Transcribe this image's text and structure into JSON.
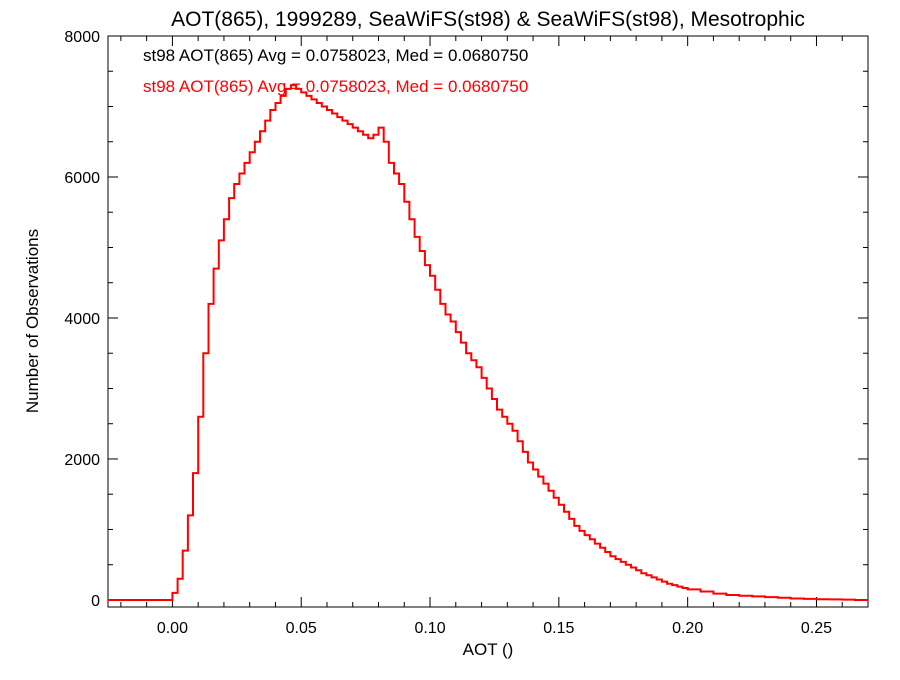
{
  "chart_data": {
    "type": "line",
    "step": true,
    "title": "AOT(865), 1999289, SeaWiFS(st98) & SeaWiFS(st98), Mesotrophic",
    "xlabel": "AOT ()",
    "ylabel": "Number of Observations",
    "xlim": [
      -0.025,
      0.27
    ],
    "ylim": [
      -100,
      8000
    ],
    "xticks": [
      0.0,
      0.05,
      0.1,
      0.15,
      0.2,
      0.25
    ],
    "xtick_labels": [
      "0.00",
      "0.05",
      "0.10",
      "0.15",
      "0.20",
      "0.25"
    ],
    "yticks": [
      0,
      2000,
      4000,
      6000,
      8000
    ],
    "ytick_labels": [
      "0",
      "2000",
      "4000",
      "6000",
      "8000"
    ],
    "grid": false,
    "annotations": [
      {
        "text": "st98 AOT(865) Avg = 0.0758023, Med = 0.0680750",
        "color": "#000000"
      },
      {
        "text": "st98 AOT(865) Avg = 0.0758023, Med = 0.0680750",
        "color": "#ff0000"
      }
    ],
    "series": [
      {
        "color": "#ff0000",
        "x": [
          -0.025,
          -0.01,
          -0.005,
          0.0,
          0.002,
          0.004,
          0.006,
          0.008,
          0.01,
          0.012,
          0.014,
          0.016,
          0.018,
          0.02,
          0.022,
          0.024,
          0.026,
          0.028,
          0.03,
          0.032,
          0.034,
          0.036,
          0.038,
          0.04,
          0.042,
          0.044,
          0.046,
          0.048,
          0.05,
          0.052,
          0.054,
          0.056,
          0.058,
          0.06,
          0.062,
          0.064,
          0.066,
          0.068,
          0.07,
          0.072,
          0.074,
          0.076,
          0.078,
          0.08,
          0.082,
          0.084,
          0.086,
          0.088,
          0.09,
          0.092,
          0.094,
          0.096,
          0.098,
          0.1,
          0.102,
          0.104,
          0.106,
          0.108,
          0.11,
          0.112,
          0.114,
          0.116,
          0.118,
          0.12,
          0.122,
          0.124,
          0.126,
          0.128,
          0.13,
          0.132,
          0.134,
          0.136,
          0.138,
          0.14,
          0.142,
          0.144,
          0.146,
          0.148,
          0.15,
          0.152,
          0.154,
          0.156,
          0.158,
          0.16,
          0.162,
          0.164,
          0.166,
          0.168,
          0.17,
          0.172,
          0.174,
          0.176,
          0.178,
          0.18,
          0.182,
          0.184,
          0.186,
          0.188,
          0.19,
          0.192,
          0.194,
          0.196,
          0.198,
          0.2,
          0.205,
          0.21,
          0.215,
          0.22,
          0.225,
          0.23,
          0.235,
          0.24,
          0.245,
          0.25,
          0.255,
          0.26,
          0.265
        ],
        "values": [
          0,
          0,
          0,
          100,
          300,
          700,
          1200,
          1800,
          2600,
          3500,
          4200,
          4700,
          5100,
          5400,
          5700,
          5900,
          6050,
          6200,
          6350,
          6500,
          6650,
          6800,
          6950,
          7050,
          7150,
          7250,
          7300,
          7250,
          7200,
          7150,
          7100,
          7050,
          7000,
          6950,
          6900,
          6850,
          6800,
          6750,
          6700,
          6650,
          6600,
          6550,
          6600,
          6700,
          6500,
          6200,
          6050,
          5900,
          5650,
          5400,
          5150,
          4950,
          4750,
          4600,
          4400,
          4200,
          4050,
          3950,
          3800,
          3650,
          3500,
          3400,
          3300,
          3150,
          3000,
          2850,
          2700,
          2600,
          2500,
          2400,
          2250,
          2100,
          1950,
          1850,
          1750,
          1650,
          1550,
          1450,
          1350,
          1250,
          1150,
          1050,
          980,
          920,
          860,
          800,
          740,
          680,
          620,
          580,
          540,
          500,
          460,
          420,
          380,
          350,
          320,
          290,
          260,
          230,
          210,
          190,
          170,
          150,
          120,
          90,
          70,
          60,
          50,
          40,
          30,
          20,
          15,
          10,
          8,
          5,
          0
        ]
      }
    ]
  }
}
